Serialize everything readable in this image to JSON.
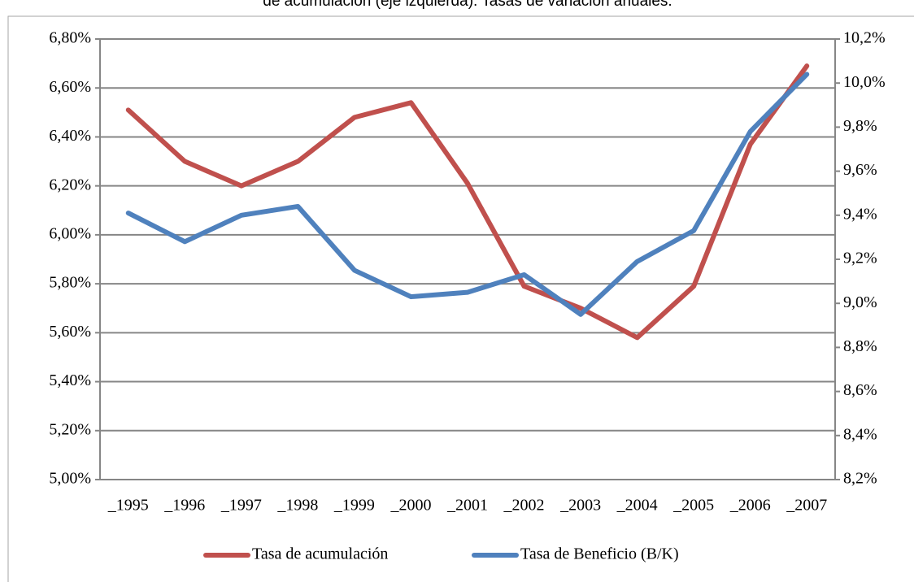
{
  "chart_data": {
    "type": "line",
    "title": "de acumulación (eje izquierda). Tasas de variación anuales.",
    "categories": [
      "_1995",
      "_1996",
      "_1997",
      "_1998",
      "_1999",
      "_2000",
      "_2001",
      "_2002",
      "_2003",
      "_2004",
      "_2005",
      "_2006",
      "_2007"
    ],
    "series": [
      {
        "name": "Tasa de acumulación",
        "color": "#c0504d",
        "values": [
          6.51,
          6.3,
          6.2,
          6.3,
          6.48,
          6.54,
          6.21,
          5.79,
          5.7,
          5.58,
          5.79,
          6.37,
          6.69
        ]
      },
      {
        "name": "Tasa de Beneficio (B/K)",
        "color": "#4f81bd",
        "axis": "y2",
        "values": [
          9.41,
          9.28,
          9.4,
          9.44,
          9.15,
          9.03,
          9.05,
          9.13,
          8.95,
          9.19,
          9.33,
          9.78,
          10.04
        ]
      }
    ],
    "ylim": [
      5.0,
      6.8
    ],
    "yticks": [
      {
        "value": 5.0,
        "label": "5,00%"
      },
      {
        "value": 5.2,
        "label": "5,20%"
      },
      {
        "value": 5.4,
        "label": "5,40%"
      },
      {
        "value": 5.6,
        "label": "5,60%"
      },
      {
        "value": 5.8,
        "label": "5,80%"
      },
      {
        "value": 6.0,
        "label": "6,00%"
      },
      {
        "value": 6.2,
        "label": "6,20%"
      },
      {
        "value": 6.4,
        "label": "6,40%"
      },
      {
        "value": 6.6,
        "label": "6,60%"
      },
      {
        "value": 6.8,
        "label": "6,80%"
      }
    ],
    "y2lim": [
      8.2,
      10.2
    ],
    "y2ticks": [
      {
        "value": 8.2,
        "label": "8,2%"
      },
      {
        "value": 8.4,
        "label": "8,4%"
      },
      {
        "value": 8.6,
        "label": "8,6%"
      },
      {
        "value": 8.8,
        "label": "8,8%"
      },
      {
        "value": 9.0,
        "label": "9,0%"
      },
      {
        "value": 9.2,
        "label": "9,2%"
      },
      {
        "value": 9.4,
        "label": "9,4%"
      },
      {
        "value": 9.6,
        "label": "9,6%"
      },
      {
        "value": 9.8,
        "label": "9,8%"
      },
      {
        "value": 10.0,
        "label": "10,0%"
      },
      {
        "value": 10.2,
        "label": "10,2%"
      }
    ],
    "grid": true,
    "legend": "bottom"
  }
}
